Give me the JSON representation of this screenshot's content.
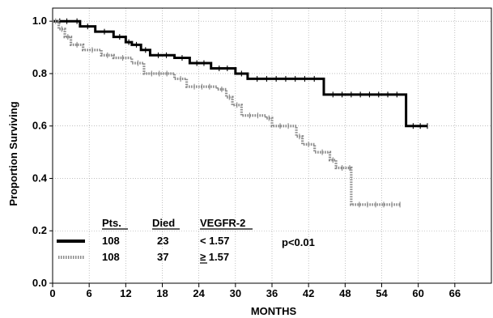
{
  "chart_data": {
    "type": "line",
    "subtype": "kaplan-meier step",
    "xlabel": "MONTHS",
    "ylabel": "Proportion Surviving",
    "xlim": [
      0,
      72
    ],
    "ylim": [
      0,
      1.05
    ],
    "xticks": [
      "0",
      "6",
      "12",
      "18",
      "24",
      "30",
      "36",
      "42",
      "48",
      "54",
      "60",
      "66"
    ],
    "yticks": [
      "0.0",
      "0.2",
      "0.4",
      "0.6",
      "0.8",
      "1.0"
    ],
    "grid": "dotted",
    "series": [
      {
        "color": "#000000",
        "style": "solid-thick",
        "points": [
          [
            0,
            1.0
          ],
          [
            3.5,
            1.0
          ],
          [
            4.5,
            0.98
          ],
          [
            7,
            0.96
          ],
          [
            10,
            0.94
          ],
          [
            12,
            0.92
          ],
          [
            13,
            0.91
          ],
          [
            14.5,
            0.89
          ],
          [
            16,
            0.87
          ],
          [
            20,
            0.86
          ],
          [
            22.5,
            0.84
          ],
          [
            26,
            0.82
          ],
          [
            30,
            0.8
          ],
          [
            32,
            0.78
          ],
          [
            44.5,
            0.78
          ],
          [
            44.5,
            0.72
          ],
          [
            58,
            0.72
          ],
          [
            58,
            0.6
          ],
          [
            61.5,
            0.6
          ]
        ]
      },
      {
        "color": "#8a8a8a",
        "style": "dotted-thick",
        "points": [
          [
            0,
            1.0
          ],
          [
            1,
            0.97
          ],
          [
            2,
            0.94
          ],
          [
            3,
            0.91
          ],
          [
            5,
            0.89
          ],
          [
            8,
            0.87
          ],
          [
            10,
            0.86
          ],
          [
            13,
            0.84
          ],
          [
            15,
            0.8
          ],
          [
            20,
            0.78
          ],
          [
            22,
            0.75
          ],
          [
            27,
            0.74
          ],
          [
            28.5,
            0.71
          ],
          [
            29.5,
            0.68
          ],
          [
            31,
            0.64
          ],
          [
            35,
            0.63
          ],
          [
            36,
            0.6
          ],
          [
            40,
            0.56
          ],
          [
            41,
            0.53
          ],
          [
            43,
            0.5
          ],
          [
            45.5,
            0.47
          ],
          [
            46.5,
            0.44
          ],
          [
            48.5,
            0.44
          ],
          [
            49,
            0.3
          ],
          [
            57,
            0.3
          ]
        ]
      }
    ],
    "legend": {
      "headers": {
        "pts": "Pts.",
        "died": "Died",
        "marker": "VEGFR-2"
      },
      "rows": [
        {
          "pts": "108",
          "died": "23",
          "marker": "< 1.57"
        },
        {
          "pts": "108",
          "died": "37",
          "marker": "≥ 1.57"
        }
      ]
    },
    "annotation": "p<0.01"
  }
}
